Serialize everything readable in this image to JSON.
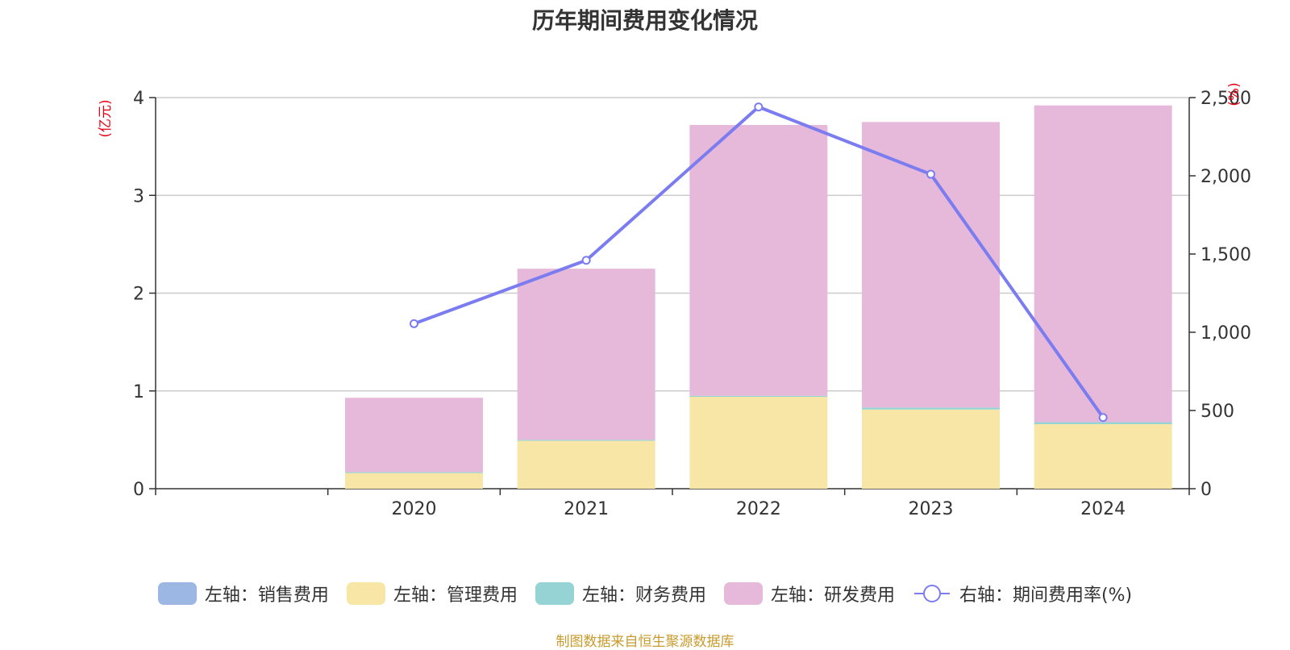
{
  "chart_data": {
    "type": "bar",
    "title": "历年期间费用变化情况",
    "categories": [
      "",
      "2020",
      "2021",
      "2022",
      "2023",
      "2024"
    ],
    "left_axis": {
      "unit": "(亿元)",
      "ylim": [
        0,
        4
      ],
      "ticks": [
        "0",
        "1",
        "2",
        "3",
        "4"
      ]
    },
    "right_axis": {
      "unit": "(%)",
      "ylim": [
        0,
        2500
      ],
      "ticks": [
        "0",
        "500",
        "1,000",
        "1,500",
        "2,000",
        "2,500"
      ]
    },
    "stacked": true,
    "series": [
      {
        "name": "左轴：销售费用",
        "axis": "left",
        "type": "bar",
        "color": "#9db7e4",
        "values": [
          null,
          0.0,
          0.0,
          0.0,
          0.0,
          0.0
        ]
      },
      {
        "name": "左轴：管理费用",
        "axis": "left",
        "type": "bar",
        "color": "#f7e6a6",
        "values": [
          null,
          0.16,
          0.49,
          0.94,
          0.81,
          0.66
        ]
      },
      {
        "name": "左轴：财务费用",
        "axis": "left",
        "type": "bar",
        "color": "#95d3d5",
        "values": [
          null,
          0.01,
          0.01,
          0.01,
          0.02,
          0.02
        ]
      },
      {
        "name": "左轴：研发费用",
        "axis": "left",
        "type": "bar",
        "color": "#e6b8d9",
        "values": [
          null,
          0.76,
          1.75,
          2.77,
          2.92,
          3.24
        ]
      },
      {
        "name": "右轴：期间费用率(%)",
        "axis": "right",
        "type": "line",
        "color": "#7b7cf0",
        "values": [
          null,
          1055,
          1460,
          2440,
          2010,
          455
        ]
      }
    ],
    "grid": true,
    "legend_position": "bottom"
  },
  "source_note": "制图数据来自恒生聚源数据库"
}
